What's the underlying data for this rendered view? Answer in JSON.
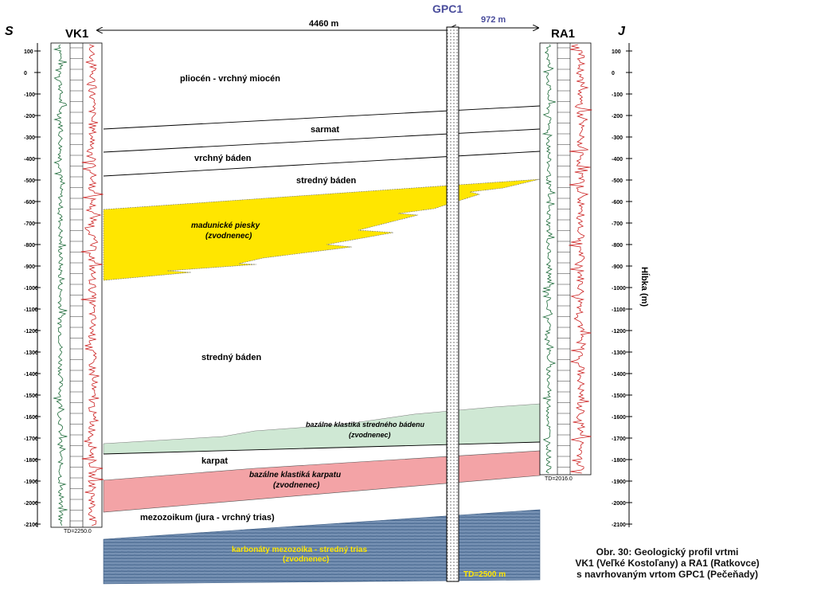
{
  "header": {
    "north": "S",
    "south": "J",
    "well_left": "VK1",
    "well_center": "GPC1",
    "well_right": "RA1",
    "distance_total": "4460 m",
    "distance_right": "972 m"
  },
  "depth_axis": {
    "title": "Hĺbka (m)",
    "ticks": [
      100,
      0,
      -100,
      -200,
      -300,
      -400,
      -500,
      -600,
      -700,
      -800,
      -900,
      -1000,
      -1100,
      -1200,
      -1300,
      -1400,
      -1500,
      -1600,
      -1700,
      -1800,
      -1900,
      -2000,
      -2100
    ]
  },
  "wells": {
    "vk1_td": "TD=2250.0",
    "ra1_td": "TD=2016.0",
    "gpc1_td": "TD=2500 m"
  },
  "units": {
    "pliocene": "pliocén - vrchný miocén",
    "sarmat": "sarmat",
    "upper_baden": "vrchný báden",
    "middle_baden_top": "stredný báden",
    "madunice_1": "madunické piesky",
    "madunice_2": "(zvodnenec)",
    "middle_baden": "stredný báden",
    "basal_baden_1": "bazálne klastiká stredného bádenu",
    "basal_baden_2": "(zvodnenec)",
    "karpat": "karpat",
    "basal_karpat_1": "bazálne klastiká karpatu",
    "basal_karpat_2": "(zvodnenec)",
    "mesozoic": "mezozoikum (jura - vrchný trias)",
    "carbonates_1": "karbonáty mezozoika - stredný trias",
    "carbonates_2": "(zvodnenec)"
  },
  "colors": {
    "madunice_sand": "#ffe600",
    "basal_baden": "#cfe8d4",
    "basal_karpat": "#f3a3a6",
    "carbonates": "#5f7fa6",
    "log_green": "#1e6b3a",
    "log_red": "#cc2222",
    "carbonate_text": "#ffe600"
  },
  "caption": {
    "line1": "Obr. 30: Geologický profil vrtmi",
    "line2": "VK1 (Veľké Kostoľany) a RA1 (Ratkovce)",
    "line3": "s navrhovaným vrtom GPC1 (Pečeňady)"
  }
}
